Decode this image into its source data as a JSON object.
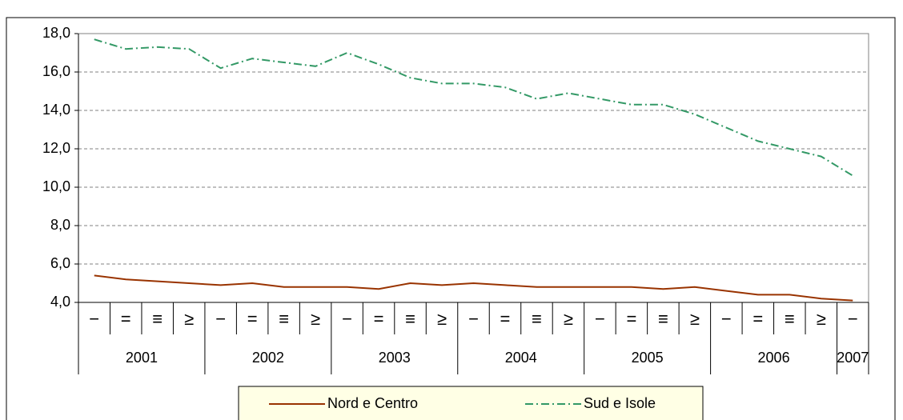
{
  "chart_data": {
    "type": "line",
    "categories": [
      "−",
      "=",
      "≡",
      "≥",
      "−",
      "=",
      "≡",
      "≥",
      "−",
      "=",
      "≡",
      "≥",
      "−",
      "=",
      "≡",
      "≥",
      "−",
      "=",
      "≡",
      "≥",
      "−",
      "=",
      "≡",
      "≥",
      "−"
    ],
    "groups": [
      "2001",
      "2002",
      "2003",
      "2004",
      "2005",
      "2006",
      "2007"
    ],
    "series": [
      {
        "name": "Nord e Centro",
        "color": "#993300",
        "dash": "solid",
        "values": [
          5.4,
          5.2,
          5.1,
          5.0,
          4.9,
          5.0,
          4.8,
          4.8,
          4.8,
          4.7,
          5.0,
          4.9,
          5.0,
          4.9,
          4.8,
          4.8,
          4.8,
          4.8,
          4.7,
          4.8,
          4.6,
          4.4,
          4.4,
          4.2,
          4.1
        ]
      },
      {
        "name": "Sud e Isole",
        "color": "#339966",
        "dash": "dashdot",
        "values": [
          17.7,
          17.2,
          17.3,
          17.2,
          16.2,
          16.7,
          16.5,
          16.3,
          17.0,
          16.4,
          15.7,
          15.4,
          15.4,
          15.2,
          14.6,
          14.9,
          14.6,
          14.3,
          14.3,
          13.8,
          13.1,
          12.4,
          12.0,
          11.6,
          10.6
        ]
      }
    ],
    "ylim": [
      4,
      18
    ],
    "yticks": [
      {
        "value": 4,
        "label": "4,0"
      },
      {
        "value": 6,
        "label": "6,0"
      },
      {
        "value": 8,
        "label": "8,0"
      },
      {
        "value": 10,
        "label": "10,0"
      },
      {
        "value": 12,
        "label": "12,0"
      },
      {
        "value": 14,
        "label": "14,0"
      },
      {
        "value": 16,
        "label": "16,0"
      },
      {
        "value": 18,
        "label": "18,0"
      }
    ],
    "grid": true
  }
}
